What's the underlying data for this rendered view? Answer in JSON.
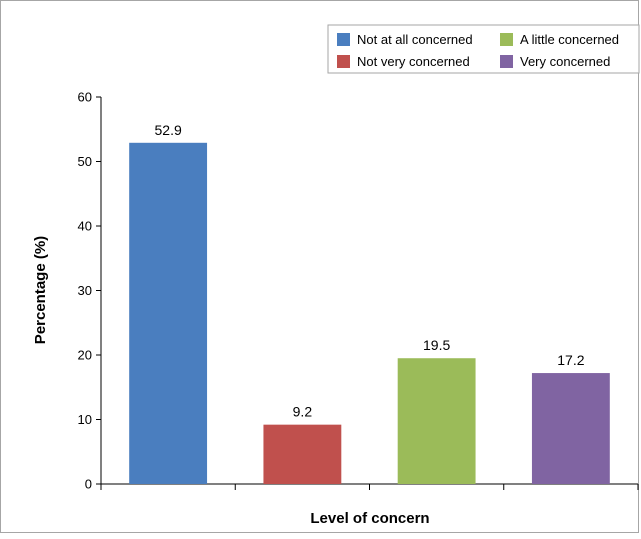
{
  "chart_data": {
    "type": "bar",
    "categories": [
      "Not at all concerned",
      "Not very concerned",
      "A little concerned",
      "Very concerned"
    ],
    "values": [
      52.9,
      9.2,
      19.5,
      17.2
    ],
    "data_labels": [
      "52.9",
      "9.2",
      "19.5",
      "17.2"
    ],
    "colors": [
      "#4a7ebf",
      "#c0504d",
      "#9bbb59",
      "#8064a2"
    ],
    "title": "",
    "xlabel": "Level of concern",
    "ylabel": "Percentage (%)",
    "ylim": [
      0,
      60
    ],
    "yticks": [
      0,
      10,
      20,
      30,
      40,
      50,
      60
    ],
    "ytick_labels": [
      "0",
      "10",
      "20",
      "30",
      "40",
      "50",
      "60"
    ],
    "grid": false,
    "legend": {
      "placement": "top-right",
      "entries": [
        "Not at all concerned",
        "A little concerned",
        "Not very concerned",
        "Very concerned"
      ],
      "entry_colors": [
        "#4a7ebf",
        "#9bbb59",
        "#c0504d",
        "#8064a2"
      ]
    }
  }
}
